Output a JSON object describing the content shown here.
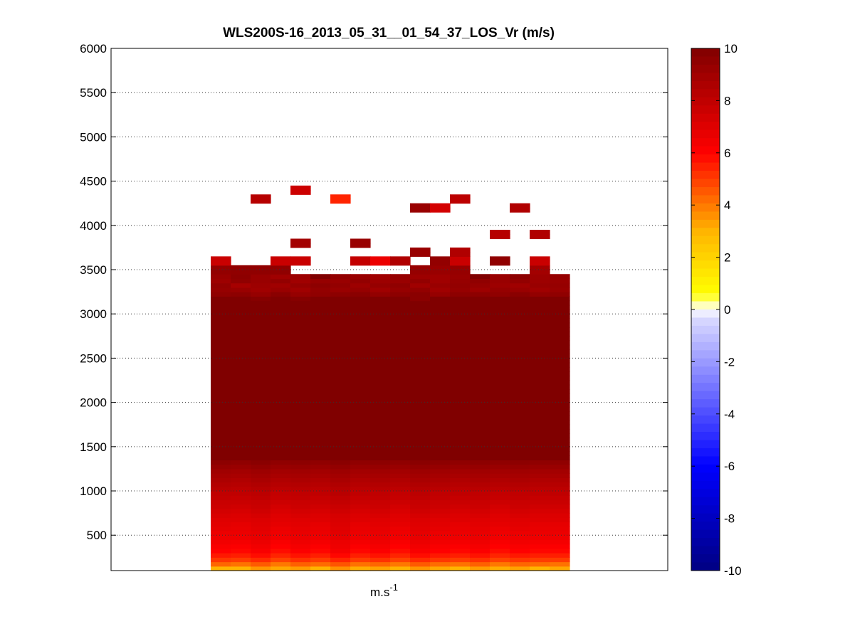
{
  "chart_data": {
    "type": "heatmap",
    "title": "WLS200S-16_2013_05_31__01_54_37_LOS_Vr (m/s)",
    "xlabel": "m.s",
    "xlabel_superscript": "-1",
    "ylabel": "",
    "ylim": [
      100,
      6000
    ],
    "yticks": [
      500,
      1000,
      1500,
      2000,
      2500,
      3000,
      3500,
      4000,
      4500,
      5000,
      5500,
      6000
    ],
    "grid": "horizontal dotted",
    "colorbar": {
      "range": [
        -10,
        10
      ],
      "ticks": [
        10,
        8,
        6,
        4,
        2,
        0,
        -2,
        -4,
        -6,
        -8,
        -10
      ],
      "colormap": "blue-white-yellow-red-darkred"
    },
    "x_columns": 18,
    "row_height": 50,
    "rows": [
      {
        "alt": 100,
        "values": [
          3.0,
          3.0,
          3.5,
          3.2,
          3.4,
          3.0,
          3.6,
          3.1,
          3.3,
          3.0,
          3.5,
          3.2,
          3.0,
          3.4,
          3.1,
          3.3,
          3.0,
          3.2
        ]
      },
      {
        "alt": 150,
        "values": [
          4.3,
          4.1,
          4.5,
          4.0,
          4.4,
          4.2,
          4.6,
          4.1,
          4.3,
          4.0,
          4.5,
          4.2,
          4.1,
          4.4,
          4.0,
          4.3,
          4.2,
          4.1
        ]
      },
      {
        "alt": 200,
        "values": [
          5.1,
          5.0,
          5.3,
          4.9,
          5.2,
          5.0,
          5.4,
          5.0,
          5.2,
          4.9,
          5.3,
          5.1,
          5.0,
          5.2,
          4.9,
          5.1,
          5.0,
          5.0
        ]
      },
      {
        "alt": 250,
        "values": [
          5.6,
          5.5,
          5.8,
          5.4,
          5.7,
          5.5,
          5.9,
          5.5,
          5.7,
          5.4,
          5.8,
          5.6,
          5.5,
          5.7,
          5.4,
          5.6,
          5.5,
          5.5
        ]
      },
      {
        "alt": 300,
        "values": [
          6.0,
          5.9,
          6.2,
          5.8,
          6.1,
          5.9,
          6.3,
          5.9,
          6.1,
          5.8,
          6.2,
          6.0,
          5.9,
          6.1,
          5.8,
          6.0,
          5.9,
          5.9
        ]
      },
      {
        "alt": 350,
        "values": [
          6.2,
          6.1,
          6.4,
          6.0,
          6.3,
          6.1,
          6.5,
          6.1,
          6.3,
          6.0,
          6.4,
          6.2,
          6.1,
          6.3,
          6.0,
          6.2,
          6.1,
          6.1
        ]
      },
      {
        "alt": 400,
        "values": [
          6.4,
          6.3,
          6.6,
          6.2,
          6.5,
          6.3,
          6.6,
          6.3,
          6.5,
          6.2,
          6.6,
          6.4,
          6.3,
          6.5,
          6.2,
          6.4,
          6.3,
          6.3
        ]
      },
      {
        "alt": 450,
        "values": [
          6.5,
          6.5,
          6.7,
          6.4,
          6.6,
          6.5,
          6.8,
          6.5,
          6.6,
          6.4,
          6.7,
          6.5,
          6.5,
          6.6,
          6.4,
          6.5,
          6.5,
          6.5
        ]
      },
      {
        "alt": 500,
        "values": [
          6.6,
          6.6,
          6.8,
          6.5,
          6.7,
          6.6,
          6.9,
          6.6,
          6.7,
          6.5,
          6.8,
          6.6,
          6.6,
          6.7,
          6.5,
          6.6,
          6.6,
          6.6
        ]
      },
      {
        "alt": 550,
        "values": [
          6.8,
          6.7,
          6.9,
          6.6,
          6.8,
          6.7,
          7.0,
          6.7,
          6.8,
          6.6,
          6.9,
          6.8,
          6.7,
          6.8,
          6.6,
          6.8,
          6.7,
          6.7
        ]
      },
      {
        "alt": 600,
        "values": [
          6.9,
          6.8,
          7.0,
          6.8,
          6.9,
          6.8,
          7.1,
          6.8,
          6.9,
          6.8,
          7.0,
          6.9,
          6.8,
          6.9,
          6.8,
          6.9,
          6.8,
          6.8
        ]
      },
      {
        "alt": 650,
        "values": [
          7.0,
          7.0,
          7.1,
          6.9,
          7.0,
          7.0,
          7.2,
          7.0,
          7.0,
          6.9,
          7.1,
          7.0,
          7.0,
          7.0,
          6.9,
          7.0,
          7.0,
          7.0
        ]
      },
      {
        "alt": 700,
        "values": [
          7.2,
          7.1,
          7.3,
          7.0,
          7.2,
          7.1,
          7.3,
          7.1,
          7.2,
          7.0,
          7.3,
          7.2,
          7.1,
          7.2,
          7.0,
          7.2,
          7.1,
          7.1
        ]
      },
      {
        "alt": 750,
        "values": [
          7.4,
          7.3,
          7.5,
          7.2,
          7.4,
          7.3,
          7.5,
          7.3,
          7.4,
          7.2,
          7.5,
          7.4,
          7.3,
          7.4,
          7.2,
          7.4,
          7.3,
          7.3
        ]
      },
      {
        "alt": 800,
        "values": [
          7.6,
          7.5,
          7.7,
          7.4,
          7.6,
          7.5,
          7.7,
          7.5,
          7.6,
          7.4,
          7.7,
          7.6,
          7.5,
          7.6,
          7.4,
          7.6,
          7.5,
          7.5
        ]
      },
      {
        "alt": 850,
        "values": [
          7.7,
          7.7,
          7.8,
          7.6,
          7.7,
          7.7,
          7.9,
          7.7,
          7.7,
          7.6,
          7.8,
          7.7,
          7.7,
          7.7,
          7.6,
          7.7,
          7.7,
          7.7
        ]
      },
      {
        "alt": 900,
        "values": [
          7.9,
          7.8,
          8.0,
          7.8,
          7.9,
          7.8,
          8.0,
          7.8,
          7.9,
          7.8,
          8.0,
          7.9,
          7.8,
          7.9,
          7.8,
          7.9,
          7.8,
          7.8
        ]
      },
      {
        "alt": 950,
        "values": [
          8.0,
          8.0,
          8.1,
          7.9,
          8.0,
          8.0,
          8.2,
          8.0,
          8.0,
          7.9,
          8.1,
          8.0,
          8.0,
          8.0,
          7.9,
          8.0,
          8.0,
          8.0
        ]
      },
      {
        "alt": 1000,
        "values": [
          8.2,
          8.1,
          8.3,
          8.1,
          8.2,
          8.1,
          8.3,
          8.1,
          8.2,
          8.1,
          8.3,
          8.2,
          8.1,
          8.2,
          8.1,
          8.2,
          8.1,
          8.1
        ]
      },
      {
        "alt": 1050,
        "values": [
          8.4,
          8.3,
          8.5,
          8.3,
          8.4,
          8.3,
          8.5,
          8.3,
          8.4,
          8.3,
          8.5,
          8.4,
          8.3,
          8.4,
          8.3,
          8.4,
          8.3,
          8.3
        ]
      },
      {
        "alt": 1100,
        "values": [
          8.6,
          8.5,
          8.7,
          8.5,
          8.6,
          8.5,
          8.7,
          8.5,
          8.6,
          8.5,
          8.7,
          8.6,
          8.5,
          8.6,
          8.5,
          8.6,
          8.5,
          8.5
        ]
      },
      {
        "alt": 1150,
        "values": [
          8.8,
          8.7,
          8.9,
          8.7,
          8.8,
          8.7,
          8.9,
          8.7,
          8.8,
          8.7,
          8.9,
          8.8,
          8.7,
          8.8,
          8.7,
          8.8,
          8.7,
          8.7
        ]
      },
      {
        "alt": 1200,
        "values": [
          9.0,
          8.9,
          9.1,
          8.9,
          9.0,
          8.9,
          9.1,
          8.9,
          9.0,
          8.9,
          9.1,
          9.0,
          8.9,
          9.0,
          8.9,
          9.0,
          8.9,
          8.9
        ]
      },
      {
        "alt": 1250,
        "values": [
          9.3,
          9.2,
          9.4,
          9.2,
          9.3,
          9.2,
          9.4,
          9.2,
          9.3,
          9.2,
          9.4,
          9.3,
          9.2,
          9.3,
          9.2,
          9.3,
          9.2,
          9.2
        ]
      },
      {
        "alt": 1300,
        "values": [
          9.6,
          9.5,
          9.7,
          9.5,
          9.6,
          9.5,
          9.7,
          9.5,
          9.6,
          9.5,
          9.7,
          9.6,
          9.5,
          9.6,
          9.5,
          9.6,
          9.5,
          9.5
        ]
      },
      {
        "alt": 1350,
        "fill": 10
      },
      {
        "alt": 1400,
        "fill": 10
      },
      {
        "alt": 1450,
        "fill": 10
      },
      {
        "alt": 1500,
        "fill": 10
      },
      {
        "alt": 1550,
        "fill": 10
      },
      {
        "alt": 1600,
        "fill": 10
      },
      {
        "alt": 1650,
        "fill": 10
      },
      {
        "alt": 1700,
        "fill": 10
      },
      {
        "alt": 1750,
        "fill": 10
      },
      {
        "alt": 1800,
        "fill": 10
      },
      {
        "alt": 1850,
        "fill": 10
      },
      {
        "alt": 1900,
        "fill": 10
      },
      {
        "alt": 1950,
        "fill": 10
      },
      {
        "alt": 2000,
        "fill": 10
      },
      {
        "alt": 2050,
        "fill": 10
      },
      {
        "alt": 2100,
        "fill": 10
      },
      {
        "alt": 2150,
        "fill": 10
      },
      {
        "alt": 2200,
        "fill": 10
      },
      {
        "alt": 2250,
        "fill": 10
      },
      {
        "alt": 2300,
        "fill": 10
      },
      {
        "alt": 2350,
        "fill": 10
      },
      {
        "alt": 2400,
        "fill": 10
      },
      {
        "alt": 2450,
        "fill": 10
      },
      {
        "alt": 2500,
        "fill": 10
      },
      {
        "alt": 2550,
        "fill": 10
      },
      {
        "alt": 2600,
        "fill": 10
      },
      {
        "alt": 2650,
        "fill": 10
      },
      {
        "alt": 2700,
        "fill": 10
      },
      {
        "alt": 2750,
        "fill": 10
      },
      {
        "alt": 2800,
        "fill": 10
      },
      {
        "alt": 2850,
        "fill": 10
      },
      {
        "alt": 2900,
        "fill": 10
      },
      {
        "alt": 2950,
        "fill": 10
      },
      {
        "alt": 3000,
        "fill": 10
      },
      {
        "alt": 3050,
        "fill": 10
      },
      {
        "alt": 3100,
        "fill": 10
      },
      {
        "alt": 3150,
        "values": [
          10,
          10,
          9.8,
          10,
          9.8,
          10,
          10,
          10,
          10,
          10,
          9.7,
          10,
          10,
          10,
          10,
          10,
          10,
          10
        ]
      },
      {
        "alt": 3200,
        "values": [
          9.5,
          9.6,
          9.3,
          9.7,
          9.3,
          9.5,
          9.6,
          9.7,
          9.4,
          9.6,
          9.7,
          9.3,
          9.6,
          9.6,
          9.5,
          9.7,
          9.4,
          9.5
        ]
      },
      {
        "alt": 3250,
        "values": [
          9.3,
          9.2,
          9.0,
          9.2,
          9.0,
          9.4,
          9.2,
          9.3,
          9.0,
          9.3,
          9.4,
          9.0,
          9.3,
          9.1,
          9.3,
          9.2,
          9.0,
          9.2
        ]
      },
      {
        "alt": 3300,
        "values": [
          9.4,
          8.8,
          9.1,
          9.0,
          9.3,
          9.6,
          9.4,
          9.1,
          9.3,
          9.5,
          9.0,
          9.2,
          9.4,
          9.3,
          9.1,
          9.0,
          9.2,
          9.3
        ]
      },
      {
        "alt": 3350,
        "values": [
          9.1,
          9.5,
          9.2,
          9.4,
          9.0,
          9.3,
          9.2,
          9.4,
          9.1,
          9.2,
          9.4,
          9.0,
          9.3,
          9.5,
          9.2,
          9.4,
          9.1,
          9.2
        ]
      },
      {
        "alt": 3400,
        "values": [
          9.2,
          9.6,
          9.2,
          9.0,
          9.1,
          10,
          9.4,
          9.2,
          9.0,
          9.3,
          9.1,
          9.0,
          9.2,
          10,
          9.2,
          9.6,
          9.1,
          9.3
        ]
      },
      {
        "alt": 3450,
        "values": [
          9.4,
          9.5,
          9.5,
          9.5,
          null,
          null,
          null,
          null,
          null,
          null,
          9.3,
          9.2,
          9.3,
          null,
          null,
          null,
          8.9,
          null
        ]
      },
      {
        "alt": 3500,
        "values": [
          9.4,
          9.5,
          9.5,
          9.5,
          null,
          null,
          null,
          null,
          null,
          null,
          9.3,
          9.2,
          9.3,
          null,
          null,
          null,
          8.9,
          null
        ]
      },
      {
        "alt": 3550,
        "values": [
          7.7,
          null,
          null,
          7.7,
          7.7,
          null,
          null,
          7.9,
          6.6,
          8.5,
          null,
          9.4,
          7.7,
          null,
          9.5,
          null,
          7.7,
          null
        ]
      },
      {
        "alt": 3600,
        "values": [
          7.7,
          null,
          null,
          7.7,
          7.7,
          null,
          null,
          7.9,
          6.6,
          8.5,
          null,
          9.4,
          7.7,
          null,
          9.5,
          null,
          7.7,
          null
        ]
      },
      {
        "alt": 3650,
        "values": [
          null,
          null,
          null,
          null,
          null,
          null,
          null,
          null,
          null,
          null,
          9.2,
          null,
          8.5,
          null,
          null,
          null,
          null,
          null
        ]
      },
      {
        "alt": 3700,
        "values": [
          null,
          null,
          null,
          null,
          null,
          null,
          null,
          null,
          null,
          null,
          9.2,
          null,
          8.5,
          null,
          null,
          null,
          null,
          null
        ]
      },
      {
        "alt": 3750,
        "values": [
          null,
          null,
          null,
          null,
          8.9,
          null,
          null,
          9.2,
          null,
          null,
          null,
          null,
          null,
          null,
          null,
          null,
          null,
          null
        ]
      },
      {
        "alt": 3800,
        "values": [
          null,
          null,
          null,
          null,
          8.9,
          null,
          null,
          9.2,
          null,
          null,
          null,
          null,
          null,
          null,
          null,
          null,
          null,
          null
        ]
      },
      {
        "alt": 3850,
        "values": [
          null,
          null,
          null,
          null,
          null,
          null,
          null,
          null,
          null,
          null,
          null,
          null,
          null,
          null,
          8.3,
          null,
          8.5,
          null
        ]
      },
      {
        "alt": 3900,
        "values": [
          null,
          null,
          null,
          null,
          null,
          null,
          null,
          null,
          null,
          null,
          null,
          null,
          null,
          null,
          8.3,
          null,
          8.5,
          null
        ]
      },
      {
        "alt": 4150,
        "values": [
          null,
          null,
          null,
          null,
          null,
          null,
          null,
          null,
          null,
          null,
          9.2,
          7.4,
          null,
          null,
          null,
          8.5,
          null,
          null
        ]
      },
      {
        "alt": 4200,
        "values": [
          null,
          null,
          null,
          null,
          null,
          null,
          null,
          null,
          null,
          null,
          9.2,
          7.4,
          null,
          null,
          null,
          8.5,
          null,
          null
        ]
      },
      {
        "alt": 4250,
        "values": [
          null,
          null,
          8.3,
          null,
          null,
          null,
          5.4,
          null,
          null,
          null,
          null,
          null,
          8.1,
          null,
          null,
          null,
          null,
          null
        ]
      },
      {
        "alt": 4300,
        "values": [
          null,
          null,
          8.3,
          null,
          null,
          null,
          5.4,
          null,
          null,
          null,
          null,
          null,
          8.1,
          null,
          null,
          null,
          null,
          null
        ]
      },
      {
        "alt": 4350,
        "values": [
          null,
          null,
          null,
          null,
          7.6,
          null,
          null,
          null,
          null,
          null,
          null,
          null,
          null,
          null,
          null,
          null,
          null,
          null
        ]
      },
      {
        "alt": 4400,
        "values": [
          null,
          null,
          null,
          null,
          7.6,
          null,
          null,
          null,
          null,
          null,
          null,
          null,
          null,
          null,
          null,
          null,
          null,
          null
        ]
      }
    ]
  }
}
